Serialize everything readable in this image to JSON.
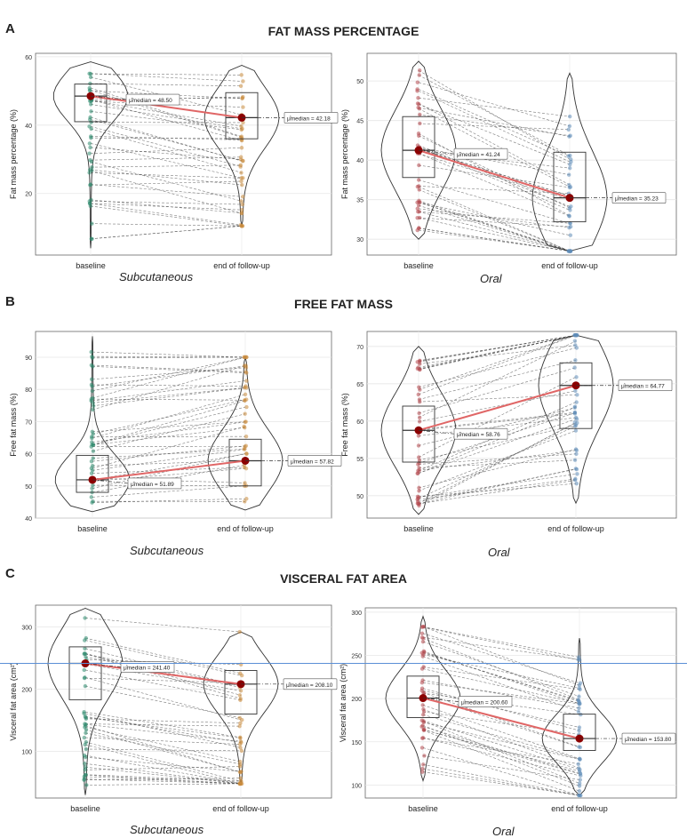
{
  "sections": [
    {
      "letter": "A",
      "title": "FAT MASS PERCENTAGE"
    },
    {
      "letter": "B",
      "title": "FREE FAT MASS"
    },
    {
      "letter": "C",
      "title": "VISCERAL FAT AREA"
    }
  ],
  "colors": {
    "sub_base": "#2e8b6e",
    "sub_end": "#c98a3c",
    "oral_base": "#b5484f",
    "oral_end": "#5f8db8",
    "median_dot": "#8b0000",
    "trend_line": "#e06666",
    "overlay_line": "#5b8fd6"
  },
  "chart_data": [
    {
      "id": "A-sub",
      "type": "violin-paired",
      "ylabel": "Fat mass percentage (%)",
      "ylim": [
        2,
        61
      ],
      "yticks": [
        20,
        40,
        60
      ],
      "categories": [
        "baseline",
        "end of follow-up"
      ],
      "group_caption": "Subcutaneous",
      "palette": "sub",
      "median_labels": [
        "48.50",
        "42.18"
      ],
      "groups": [
        {
          "name": "baseline",
          "median": 48.5,
          "q1": 41,
          "q3": 52,
          "min": 4,
          "max": 58.5
        },
        {
          "name": "end of follow-up",
          "median": 42.18,
          "q1": 36,
          "q3": 49.5,
          "min": 10.5,
          "max": 57.5
        }
      ]
    },
    {
      "id": "A-oral",
      "type": "violin-paired",
      "ylabel": "Fat mass percentage (%)",
      "ylim": [
        28,
        53.5
      ],
      "yticks": [
        30,
        35,
        40,
        45,
        50
      ],
      "categories": [
        "baseline",
        "end of follow-up"
      ],
      "group_caption": "Oral",
      "palette": "oral",
      "median_labels": [
        "41.24",
        "35.23"
      ],
      "groups": [
        {
          "name": "baseline",
          "median": 41.24,
          "q1": 37.8,
          "q3": 45.5,
          "min": 30,
          "max": 52.5
        },
        {
          "name": "end of follow-up",
          "median": 35.23,
          "q1": 32.2,
          "q3": 41,
          "min": 28.5,
          "max": 51
        }
      ]
    },
    {
      "id": "B-sub",
      "type": "violin-paired",
      "ylabel": "Free fat mass (%)",
      "ylim": [
        40,
        98
      ],
      "yticks": [
        40,
        50,
        60,
        70,
        80,
        90
      ],
      "categories": [
        "baseline",
        "end of follow-up"
      ],
      "group_caption": "Subcutaneous",
      "palette": "sub",
      "median_labels": [
        "51.89",
        "57.82"
      ],
      "groups": [
        {
          "name": "baseline",
          "median": 51.89,
          "q1": 48,
          "q3": 59.5,
          "min": 42,
          "max": 96.5
        },
        {
          "name": "end of follow-up",
          "median": 57.82,
          "q1": 50,
          "q3": 64.5,
          "min": 42.5,
          "max": 90
        }
      ]
    },
    {
      "id": "B-oral",
      "type": "violin-paired",
      "ylabel": "Free fat mass (%)",
      "ylim": [
        47,
        72
      ],
      "yticks": [
        50,
        55,
        60,
        65,
        70
      ],
      "categories": [
        "baseline",
        "end of follow-up"
      ],
      "group_caption": "Oral",
      "palette": "oral",
      "median_labels": [
        "58.76",
        "64.77"
      ],
      "groups": [
        {
          "name": "baseline",
          "median": 58.76,
          "q1": 54.5,
          "q3": 62,
          "min": 47.5,
          "max": 70
        },
        {
          "name": "end of follow-up",
          "median": 64.77,
          "q1": 59,
          "q3": 67.8,
          "min": 49,
          "max": 71.5
        }
      ]
    },
    {
      "id": "C-sub",
      "type": "violin-paired",
      "ylabel": "Visceral fat area (cm²)",
      "ylim": [
        25,
        335
      ],
      "yticks": [
        100,
        200,
        300
      ],
      "categories": [
        "baseline",
        "end of follow-up"
      ],
      "group_caption": "Subcutaneous",
      "palette": "sub",
      "median_labels": [
        "241.40",
        "208.10"
      ],
      "groups": [
        {
          "name": "baseline",
          "median": 241.4,
          "q1": 183,
          "q3": 268,
          "min": 30,
          "max": 330
        },
        {
          "name": "end of follow-up",
          "median": 208.1,
          "q1": 160,
          "q3": 230,
          "min": 48,
          "max": 292
        }
      ]
    },
    {
      "id": "C-oral",
      "type": "violin-paired",
      "ylabel": "Visceral fat area (cm²)",
      "ylim": [
        85,
        305
      ],
      "yticks": [
        100,
        150,
        200,
        250,
        300
      ],
      "categories": [
        "baseline",
        "end of follow-up"
      ],
      "group_caption": "Oral",
      "palette": "oral",
      "median_labels": [
        "200.60",
        "153.80"
      ],
      "groups": [
        {
          "name": "baseline",
          "median": 200.6,
          "q1": 178,
          "q3": 226,
          "min": 105,
          "max": 295
        },
        {
          "name": "end of follow-up",
          "median": 153.8,
          "q1": 140,
          "q3": 182,
          "min": 88,
          "max": 270
        }
      ]
    }
  ]
}
